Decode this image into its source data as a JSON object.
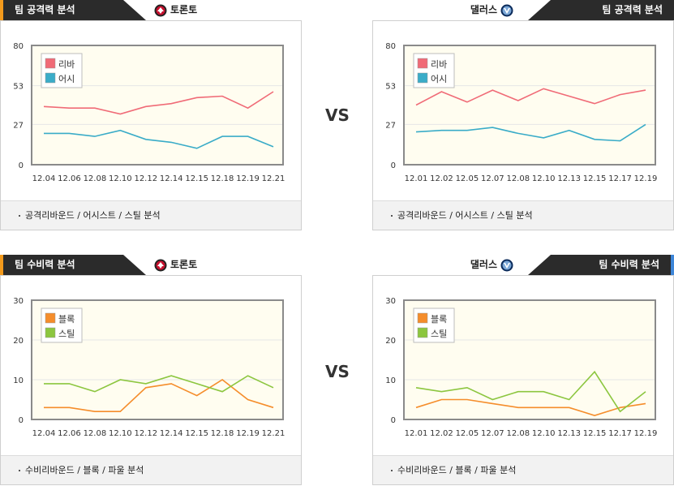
{
  "vs_label": "VS",
  "panels": [
    {
      "id": "tl",
      "tab_label": "팀 공격력 분석",
      "team_name": "토론토",
      "footer": "공격리바운드 / 어시스트 / 스틸 분석",
      "chart_data": {
        "type": "line",
        "categories": [
          "12.04",
          "12.06",
          "12.08",
          "12.10",
          "12.12",
          "12.14",
          "12.15",
          "12.18",
          "12.19",
          "12.21"
        ],
        "yticks": [
          0,
          27,
          53,
          80
        ],
        "ylim": [
          0,
          80
        ],
        "legend_position": "top-left",
        "series": [
          {
            "name": "리바",
            "color": "#f06b77",
            "values": [
              39,
              38,
              38,
              34,
              39,
              41,
              45,
              46,
              38,
              49
            ]
          },
          {
            "name": "어시",
            "color": "#3aacc8",
            "values": [
              21,
              21,
              19,
              23,
              17,
              15,
              11,
              19,
              19,
              12
            ]
          }
        ]
      }
    },
    {
      "id": "tr",
      "tab_label": "팀 공격력 분석",
      "team_name": "댈러스",
      "footer": "공격리바운드 / 어시스트 / 스틸 분석",
      "chart_data": {
        "type": "line",
        "categories": [
          "12.01",
          "12.02",
          "12.05",
          "12.07",
          "12.08",
          "12.10",
          "12.13",
          "12.15",
          "12.17",
          "12.19"
        ],
        "yticks": [
          0,
          27,
          53,
          80
        ],
        "ylim": [
          0,
          80
        ],
        "legend_position": "top-left",
        "series": [
          {
            "name": "리바",
            "color": "#f06b77",
            "values": [
              40,
              49,
              42,
              50,
              43,
              51,
              46,
              41,
              47,
              50
            ]
          },
          {
            "name": "어시",
            "color": "#3aacc8",
            "values": [
              22,
              23,
              23,
              25,
              21,
              18,
              23,
              17,
              16,
              27
            ]
          }
        ]
      }
    },
    {
      "id": "bl",
      "tab_label": "팀 수비력 분석",
      "team_name": "토론토",
      "footer": "수비리바운드 / 블록 / 파울 분석",
      "chart_data": {
        "type": "line",
        "categories": [
          "12.04",
          "12.06",
          "12.08",
          "12.10",
          "12.12",
          "12.14",
          "12.15",
          "12.18",
          "12.19",
          "12.21"
        ],
        "yticks": [
          0,
          10,
          20,
          30
        ],
        "ylim": [
          0,
          30
        ],
        "legend_position": "top-left",
        "series": [
          {
            "name": "블록",
            "color": "#f58d2b",
            "values": [
              3,
              3,
              2,
              2,
              8,
              9,
              6,
              10,
              5,
              3
            ]
          },
          {
            "name": "스틸",
            "color": "#8cc63f",
            "values": [
              9,
              9,
              7,
              10,
              9,
              11,
              9,
              7,
              11,
              8
            ]
          }
        ]
      }
    },
    {
      "id": "br",
      "tab_label": "팀 수비력 분석",
      "team_name": "댈러스",
      "footer": "수비리바운드 / 블록 / 파울 분석",
      "chart_data": {
        "type": "line",
        "categories": [
          "12.01",
          "12.02",
          "12.05",
          "12.07",
          "12.08",
          "12.10",
          "12.13",
          "12.15",
          "12.17",
          "12.19"
        ],
        "yticks": [
          0,
          10,
          20,
          30
        ],
        "ylim": [
          0,
          30
        ],
        "legend_position": "top-left",
        "series": [
          {
            "name": "블록",
            "color": "#f58d2b",
            "values": [
              3,
              5,
              5,
              4,
              3,
              3,
              3,
              1,
              3,
              4
            ]
          },
          {
            "name": "스틸",
            "color": "#8cc63f",
            "values": [
              8,
              7,
              8,
              5,
              7,
              7,
              5,
              12,
              2,
              7
            ]
          }
        ]
      }
    }
  ]
}
